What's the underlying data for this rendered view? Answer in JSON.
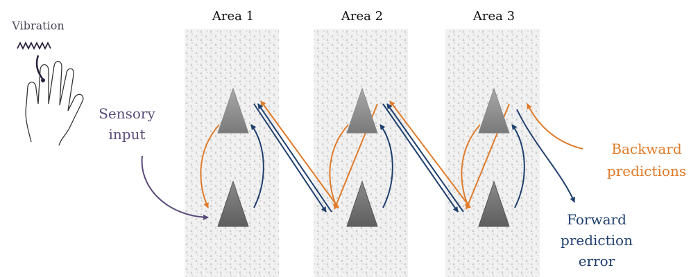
{
  "stimulus": {
    "label": "Vibration"
  },
  "input": {
    "label_lines": [
      "Sensory",
      "input"
    ]
  },
  "areas": [
    {
      "label": "Area 1"
    },
    {
      "label": "Area 2"
    },
    {
      "label": "Area 3"
    }
  ],
  "legend": {
    "backward_lines": [
      "Backward",
      "predictions"
    ],
    "forward_lines": [
      "Forward",
      "prediction",
      "error"
    ]
  }
}
